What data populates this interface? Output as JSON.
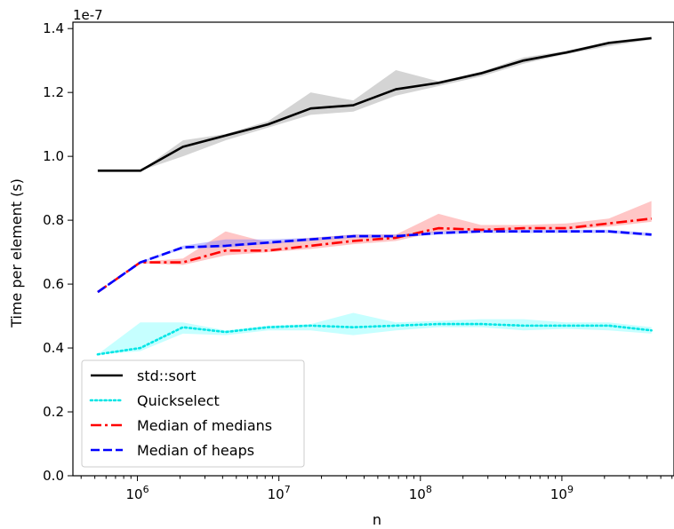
{
  "chart_data": {
    "type": "line",
    "title": "",
    "xlabel": "n",
    "ylabel": "Time per element (s)",
    "y_offset_label": "1e-7",
    "x_scale": "log",
    "xlim": [
      350000,
      6200000000
    ],
    "ylim": [
      0.0,
      1.42
    ],
    "x_ticks": [
      {
        "value": 1000000,
        "base": "10",
        "exp": "6"
      },
      {
        "value": 10000000,
        "base": "10",
        "exp": "7"
      },
      {
        "value": 100000000,
        "base": "10",
        "exp": "8"
      },
      {
        "value": 1000000000,
        "base": "10",
        "exp": "9"
      }
    ],
    "y_ticks": [
      0.0,
      0.2,
      0.4,
      0.6,
      0.8,
      1.0,
      1.2,
      1.4
    ],
    "y_tick_labels": [
      "0.0",
      "0.2",
      "0.4",
      "0.6",
      "0.8",
      "1.0",
      "1.2",
      "1.4"
    ],
    "legend_position": "lower-left",
    "x": [
      524288,
      1048576,
      2097152,
      4194304,
      8388608,
      16777216,
      33554432,
      67108864,
      134217728,
      268435456,
      536870912,
      1073741824,
      2147483648,
      4294967296
    ],
    "series": [
      {
        "name": "std::sort",
        "color": "#000000",
        "dash": "solid",
        "band_color": "#a0a0a0",
        "values": [
          0.955,
          0.955,
          1.03,
          1.065,
          1.1,
          1.15,
          1.16,
          1.21,
          1.23,
          1.26,
          1.3,
          1.325,
          1.355,
          1.37
        ],
        "band_low": [
          0.955,
          0.955,
          1.0,
          1.05,
          1.09,
          1.13,
          1.14,
          1.19,
          1.22,
          1.25,
          1.29,
          1.32,
          1.345,
          1.365
        ],
        "band_high": [
          0.955,
          0.955,
          1.05,
          1.07,
          1.11,
          1.2,
          1.175,
          1.27,
          1.235,
          1.265,
          1.31,
          1.33,
          1.36,
          1.375
        ]
      },
      {
        "name": "Quickselect",
        "color": "#00e5e5",
        "dash": "dotted",
        "band_color": "#80ffff",
        "values": [
          0.38,
          0.4,
          0.465,
          0.45,
          0.465,
          0.47,
          0.465,
          0.47,
          0.475,
          0.475,
          0.47,
          0.47,
          0.47,
          0.455
        ],
        "band_low": [
          0.38,
          0.39,
          0.445,
          0.44,
          0.455,
          0.455,
          0.44,
          0.455,
          0.465,
          0.465,
          0.455,
          0.46,
          0.455,
          0.445
        ],
        "band_high": [
          0.38,
          0.48,
          0.48,
          0.455,
          0.47,
          0.475,
          0.51,
          0.48,
          0.485,
          0.49,
          0.49,
          0.48,
          0.48,
          0.465
        ]
      },
      {
        "name": "Median of medians",
        "color": "#ff0000",
        "dash": "dashdot",
        "band_color": "#ff8080",
        "values": [
          0.575,
          0.668,
          0.668,
          0.705,
          0.705,
          0.72,
          0.735,
          0.745,
          0.775,
          0.77,
          0.775,
          0.775,
          0.79,
          0.805
        ],
        "band_low": [
          0.575,
          0.665,
          0.66,
          0.69,
          0.7,
          0.71,
          0.725,
          0.735,
          0.765,
          0.765,
          0.77,
          0.77,
          0.78,
          0.795
        ],
        "band_high": [
          0.575,
          0.67,
          0.68,
          0.765,
          0.73,
          0.745,
          0.755,
          0.755,
          0.82,
          0.785,
          0.785,
          0.79,
          0.805,
          0.86
        ]
      },
      {
        "name": "Median of heaps",
        "color": "#0000ff",
        "dash": "dashed",
        "band_color": "#8080ff",
        "values": [
          0.575,
          0.668,
          0.715,
          0.72,
          0.73,
          0.74,
          0.75,
          0.75,
          0.76,
          0.765,
          0.765,
          0.765,
          0.765,
          0.755
        ],
        "band_low": [
          0.575,
          0.665,
          0.71,
          0.715,
          0.725,
          0.735,
          0.745,
          0.745,
          0.755,
          0.76,
          0.76,
          0.76,
          0.76,
          0.75
        ],
        "band_high": [
          0.575,
          0.67,
          0.72,
          0.74,
          0.74,
          0.745,
          0.755,
          0.755,
          0.765,
          0.77,
          0.77,
          0.77,
          0.77,
          0.76
        ]
      }
    ]
  }
}
